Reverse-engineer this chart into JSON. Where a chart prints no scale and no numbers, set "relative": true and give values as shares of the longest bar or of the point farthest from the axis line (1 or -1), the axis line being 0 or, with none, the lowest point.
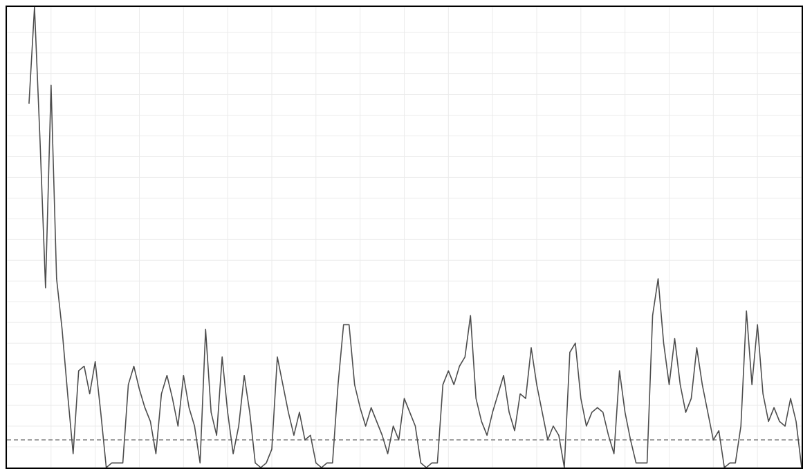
{
  "chart_data": {
    "type": "line",
    "relative": true,
    "grid": true,
    "categories": [
      null,
      null,
      null,
      null,
      null,
      null,
      null,
      null,
      null,
      null,
      null,
      null,
      null,
      null,
      null,
      null,
      null,
      null,
      null,
      null,
      null,
      null,
      null,
      null,
      null,
      null,
      null,
      null,
      null,
      null,
      null,
      null,
      null,
      null,
      null,
      null,
      null,
      null,
      null,
      null,
      null,
      null,
      null,
      null,
      null,
      null,
      null,
      null,
      null,
      null,
      null,
      null,
      null,
      null,
      null,
      null,
      null,
      null,
      null,
      null,
      null,
      null,
      null,
      null,
      null,
      null,
      null,
      null,
      null,
      null,
      null,
      null,
      null,
      null,
      null,
      null,
      null,
      null,
      null,
      null,
      null,
      null,
      null,
      null,
      null,
      null,
      null,
      null,
      null,
      null,
      null,
      null,
      null,
      null,
      null,
      null,
      null,
      null,
      null,
      null,
      null,
      null,
      null,
      null,
      null,
      null,
      null,
      null,
      null,
      null,
      null,
      null,
      null,
      null,
      null,
      null,
      null,
      null,
      null,
      null,
      null,
      null,
      null,
      null,
      null,
      null,
      null,
      null,
      null,
      null,
      null,
      null,
      null,
      null,
      null,
      null,
      null,
      null,
      null,
      null,
      null,
      null,
      null,
      null,
      null
    ],
    "series": [
      {
        "color": "#4d4d4d",
        "values": [
          null,
          null,
          null,
          null,
          0.79,
          1,
          0.71,
          0.39,
          0.83,
          0.41,
          0.3,
          0.16,
          0.03,
          0.21,
          0.22,
          0.16,
          0.23,
          0.12,
          0.0,
          0.01,
          0.01,
          0.01,
          0.18,
          0.22,
          0.17,
          0.13,
          0.1,
          0.03,
          0.16,
          0.2,
          0.15,
          0.09,
          0.2,
          0.13,
          0.09,
          0.01,
          0.3,
          0.12,
          0.07,
          0.24,
          0.12,
          0.03,
          0.09,
          0.2,
          0.12,
          0.01,
          0.0,
          0.01,
          0.04,
          0.24,
          0.18,
          0.12,
          0.07,
          0.12,
          0.06,
          0.07,
          0.01,
          0.0,
          0.01,
          0.01,
          0.18,
          0.31,
          0.31,
          0.18,
          0.13,
          0.09,
          0.13,
          0.1,
          0.07,
          0.03,
          0.09,
          0.06,
          0.15,
          0.12,
          0.09,
          0.01,
          0.0,
          0.01,
          0.01,
          0.18,
          0.21,
          0.18,
          0.22,
          0.24,
          0.33,
          0.15,
          0.1,
          0.07,
          0.12,
          0.16,
          0.2,
          0.12,
          0.08,
          0.16,
          0.15,
          0.26,
          0.18,
          0.12,
          0.06,
          0.09,
          0.07,
          0.0,
          0.25,
          0.27,
          0.15,
          0.09,
          0.12,
          0.13,
          0.12,
          0.07,
          0.03,
          0.21,
          0.12,
          0.06,
          0.01,
          0.01,
          0.01,
          0.33,
          0.41,
          0.27,
          0.18,
          0.28,
          0.18,
          0.12,
          0.15,
          0.26,
          0.18,
          0.12,
          0.06,
          0.08,
          0.0,
          0.01,
          0.01,
          0.09,
          0.34,
          0.18,
          0.31,
          0.16,
          0.1,
          0.13,
          0.1,
          0.09,
          0.15,
          0.1,
          0
        ]
      }
    ],
    "ref_lines": [
      {
        "axis": "y",
        "value": 0.06,
        "color": "#808080",
        "line_style": "dashed"
      }
    ]
  }
}
